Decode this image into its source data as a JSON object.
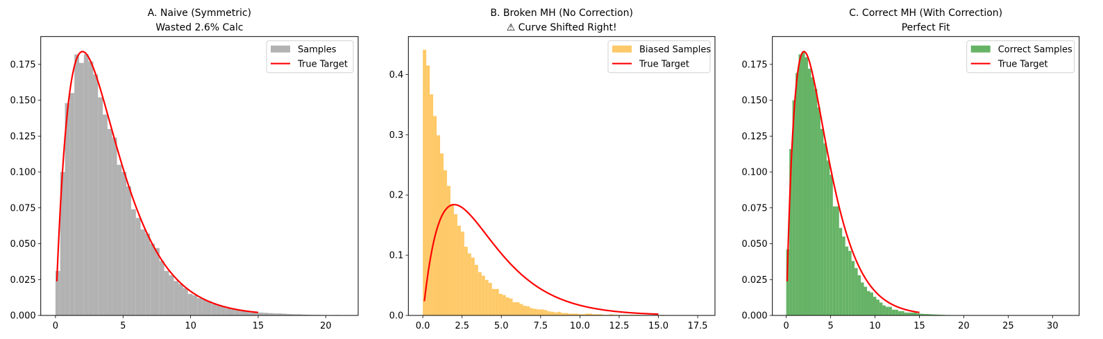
{
  "chart_data": [
    {
      "type": "bar",
      "title": [
        "A. Naive (Symmetric)",
        "Wasted 2.6% Calc"
      ],
      "xlabel": "",
      "ylabel": "",
      "xlim": [
        -1.09,
        22.4
      ],
      "ylim": [
        0,
        0.1944
      ],
      "xticks": [
        0,
        5,
        10,
        15,
        20
      ],
      "xtick_labels": [
        "0",
        "5",
        "10",
        "15",
        "20"
      ],
      "yticks": [
        0,
        0.025,
        0.05,
        0.075,
        0.1,
        0.125,
        0.15,
        0.175
      ],
      "ytick_labels": [
        "0.000",
        "0.025",
        "0.050",
        "0.075",
        "0.100",
        "0.125",
        "0.150",
        "0.175"
      ],
      "hist": {
        "name": "Samples",
        "color": "#b2b2b2",
        "bin_start": 0,
        "bin_width": 0.35,
        "values": [
          0.031,
          0.1,
          0.148,
          0.155,
          0.182,
          0.176,
          0.182,
          0.177,
          0.168,
          0.152,
          0.14,
          0.13,
          0.124,
          0.105,
          0.1,
          0.09,
          0.074,
          0.068,
          0.06,
          0.057,
          0.05,
          0.047,
          0.038,
          0.031,
          0.028,
          0.024,
          0.022,
          0.019,
          0.015,
          0.014,
          0.012,
          0.011,
          0.01,
          0.008,
          0.007,
          0.006,
          0.005,
          0.005,
          0.004,
          0.003,
          0.003,
          0.002,
          0.002,
          0.002,
          0.0018,
          0.0016,
          0.0014,
          0.0014,
          0.0012,
          0.001,
          0.0008,
          0.0008,
          0.0006,
          0.0005,
          0.0004,
          0.0004,
          0.0003,
          0.0002,
          0.0002,
          0.0003
        ]
      },
      "line": {
        "name": "True Target",
        "color": "#ff0000",
        "distribution": "gamma",
        "shape": 2,
        "scale": 2,
        "x_range": [
          0.1,
          15
        ]
      },
      "legend": {
        "position": "top-right",
        "entries": [
          "Samples",
          "True Target"
        ]
      }
    },
    {
      "type": "bar",
      "title": [
        "B. Broken MH (No Correction)",
        "⚠ Curve Shifted Right!"
      ],
      "xlabel": "",
      "ylabel": "",
      "xlim": [
        -0.92,
        18.6
      ],
      "ylim": [
        0,
        0.463
      ],
      "xticks": [
        0,
        2.5,
        5,
        7.5,
        10,
        12.5,
        15,
        17.5
      ],
      "xtick_labels": [
        "0.0",
        "2.5",
        "5.0",
        "7.5",
        "10.0",
        "12.5",
        "15.0",
        "17.5"
      ],
      "yticks": [
        0,
        0.1,
        0.2,
        0.3,
        0.4
      ],
      "ytick_labels": [
        "0.0",
        "0.1",
        "0.2",
        "0.3",
        "0.4"
      ],
      "hist": {
        "name": "Biased Samples",
        "color": "#fec968",
        "bin_start": 0,
        "bin_width": 0.22,
        "values": [
          0.441,
          0.415,
          0.367,
          0.331,
          0.299,
          0.269,
          0.241,
          0.215,
          0.185,
          0.168,
          0.149,
          0.139,
          0.114,
          0.103,
          0.096,
          0.084,
          0.072,
          0.066,
          0.059,
          0.054,
          0.044,
          0.044,
          0.036,
          0.034,
          0.03,
          0.028,
          0.022,
          0.022,
          0.019,
          0.016,
          0.015,
          0.012,
          0.011,
          0.01,
          0.01,
          0.009,
          0.007,
          0.006,
          0.005,
          0.006,
          0.004,
          0.004,
          0.003,
          0.003,
          0.003,
          0.002,
          0.002,
          0.003,
          0.003,
          0.002,
          0.002,
          0.002,
          0.001,
          0.001,
          0.002,
          0.001,
          0.001,
          0.001,
          0.001,
          0.001,
          0.001,
          0.001,
          0.001,
          0.0005,
          0.0005,
          0.0005,
          0.0005,
          0.0005,
          0.0005,
          0.001
        ]
      },
      "line": {
        "name": "True Target",
        "color": "#ff0000",
        "distribution": "gamma",
        "shape": 2,
        "scale": 2,
        "x_range": [
          0.1,
          15
        ]
      },
      "legend": {
        "position": "top-right",
        "entries": [
          "Biased Samples",
          "True Target"
        ]
      }
    },
    {
      "type": "bar",
      "title": [
        "C. Correct MH (With Correction)",
        "Perfect Fit"
      ],
      "xlabel": "",
      "ylabel": "",
      "xlim": [
        -1.56,
        33.0
      ],
      "ylim": [
        0,
        0.1944
      ],
      "xticks": [
        0,
        5,
        10,
        15,
        20,
        25,
        30
      ],
      "xtick_labels": [
        "0",
        "5",
        "10",
        "15",
        "20",
        "25",
        "30"
      ],
      "yticks": [
        0,
        0.025,
        0.05,
        0.075,
        0.1,
        0.125,
        0.15,
        0.175
      ],
      "ytick_labels": [
        "0.000",
        "0.025",
        "0.050",
        "0.075",
        "0.100",
        "0.125",
        "0.150",
        "0.175"
      ],
      "hist": {
        "name": "Correct Samples",
        "color": "#66b366",
        "bin_start": 0,
        "bin_width": 0.35,
        "values": [
          0.046,
          0.116,
          0.15,
          0.169,
          0.182,
          0.184,
          0.18,
          0.172,
          0.166,
          0.158,
          0.145,
          0.13,
          0.12,
          0.108,
          0.098,
          0.076,
          0.076,
          0.061,
          0.055,
          0.048,
          0.045,
          0.038,
          0.033,
          0.028,
          0.023,
          0.02,
          0.017,
          0.016,
          0.013,
          0.011,
          0.009,
          0.007,
          0.006,
          0.006,
          0.004,
          0.004,
          0.003,
          0.003,
          0.002,
          0.002,
          0.002,
          0.002,
          0.0015,
          0.0012,
          0.001,
          0.001,
          0.0008,
          0.0007,
          0.0006,
          0.0005,
          0.0004,
          0.0003,
          0.0003,
          0.0002,
          0.0002,
          0.0002,
          0.0001
        ]
      },
      "line": {
        "name": "True Target",
        "color": "#ff0000",
        "distribution": "gamma",
        "shape": 2,
        "scale": 2,
        "x_range": [
          0.1,
          15
        ]
      },
      "legend": {
        "position": "top-right",
        "entries": [
          "Correct Samples",
          "True Target"
        ]
      }
    }
  ]
}
